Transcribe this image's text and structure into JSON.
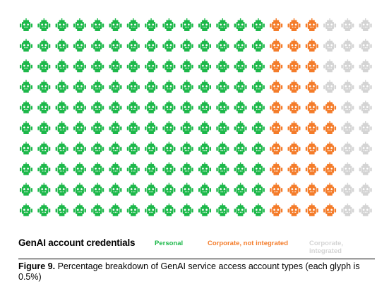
{
  "chart_data": {
    "type": "waffle",
    "glyph": "robot-icon",
    "each_glyph_percent": 0.5,
    "rows": 10,
    "columns": 20,
    "row_counts": [
      {
        "Personal": 14,
        "Corporate, not integrated": 3,
        "Corporate, integrated": 3
      },
      {
        "Personal": 14,
        "Corporate, not integrated": 3,
        "Corporate, integrated": 3
      },
      {
        "Personal": 14,
        "Corporate, not integrated": 3,
        "Corporate, integrated": 3
      },
      {
        "Personal": 14,
        "Corporate, not integrated": 3,
        "Corporate, integrated": 3
      },
      {
        "Personal": 14,
        "Corporate, not integrated": 4,
        "Corporate, integrated": 2
      },
      {
        "Personal": 14,
        "Corporate, not integrated": 4,
        "Corporate, integrated": 2
      },
      {
        "Personal": 14,
        "Corporate, not integrated": 4,
        "Corporate, integrated": 2
      },
      {
        "Personal": 14,
        "Corporate, not integrated": 4,
        "Corporate, integrated": 2
      },
      {
        "Personal": 14,
        "Corporate, not integrated": 4,
        "Corporate, integrated": 2
      },
      {
        "Personal": 14,
        "Corporate, not integrated": 4,
        "Corporate, integrated": 2
      }
    ],
    "series": [
      {
        "name": "Personal",
        "glyphs": 140,
        "percent": 70.0,
        "color": "#1db84a"
      },
      {
        "name": "Corporate, not integrated",
        "glyphs": 36,
        "percent": 18.0,
        "color": "#f47c2a"
      },
      {
        "name": "Corporate, integrated",
        "glyphs": 24,
        "percent": 12.0,
        "color": "#d4d4d4"
      }
    ],
    "legend_title": "GenAI account credentials"
  },
  "caption": {
    "label": "Figure 9.",
    "text": " Percentage breakdown of GenAI service access account types (each glyph is 0.5%)"
  }
}
